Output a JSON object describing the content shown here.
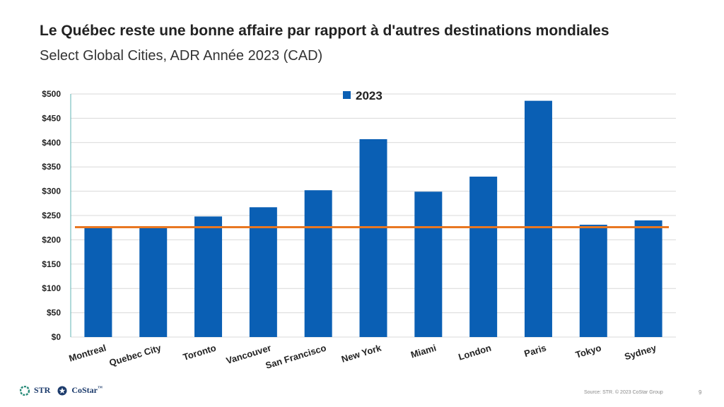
{
  "header": {
    "title": "Le Québec reste une bonne affaire par rapport à d'autres destinations mondiales",
    "subtitle": "Select Global Cities, ADR Année 2023 (CAD)"
  },
  "chart_data": {
    "type": "bar",
    "categories": [
      "Montreal",
      "Quebec City",
      "Toronto",
      "Vancouver",
      "San Francisco",
      "New York",
      "Miami",
      "London",
      "Paris",
      "Tokyo",
      "Sydney"
    ],
    "series": [
      {
        "name": "2023",
        "values": [
          225,
          224,
          248,
          267,
          302,
          407,
          299,
          330,
          486,
          231,
          240
        ],
        "color": "#0a5fb4"
      }
    ],
    "reference_line": {
      "value": 226,
      "color": "#e87722"
    },
    "ylim": [
      0,
      500
    ],
    "yticks": [
      0,
      50,
      100,
      150,
      200,
      250,
      300,
      350,
      400,
      450,
      500
    ],
    "ytick_labels": [
      "$0",
      "$50",
      "$100",
      "$150",
      "$200",
      "$250",
      "$300",
      "$350",
      "$400",
      "$450",
      "$500"
    ],
    "legend_position": "top-center",
    "grid": true
  },
  "footer": {
    "logo_str": "STR",
    "logo_costar": "CoStar",
    "logo_costar_tm": "™",
    "source": "Source: STR. © 2023 CoStar Group",
    "page_number": "9"
  }
}
